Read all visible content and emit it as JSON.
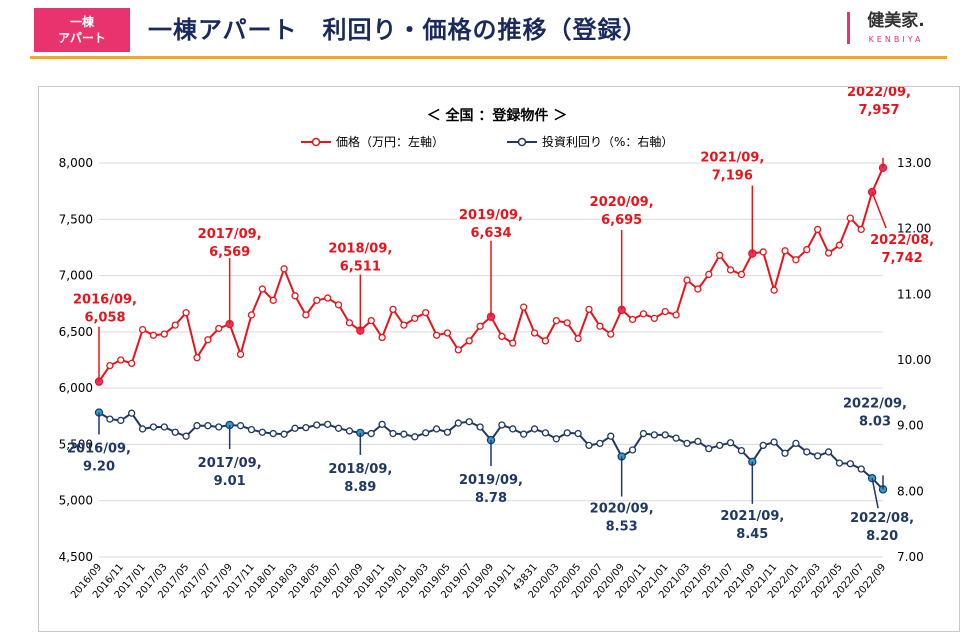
{
  "header": {
    "badge_line1": "一棟",
    "badge_line2": "アパート",
    "title": "一棟アパート　利回り・価格の推移（登録）",
    "logo_text": "健美家.",
    "logo_sub": "KENBIYA"
  },
  "colors": {
    "price": "#e8141b",
    "yield": "#1f3864",
    "price_highlight": "#e8336e",
    "yield_highlight": "#2e9fd1",
    "accent": "#f5a623"
  },
  "chart_data": {
    "type": "line",
    "title": "＜ 全国 ：登録物件 ＞",
    "x": [
      "2016/09",
      "2016/10",
      "2016/11",
      "2016/12",
      "2017/01",
      "2017/02",
      "2017/03",
      "2017/04",
      "2017/05",
      "2017/06",
      "2017/07",
      "2017/08",
      "2017/09",
      "2017/10",
      "2017/11",
      "2017/12",
      "2018/01",
      "2018/02",
      "2018/03",
      "2018/04",
      "2018/05",
      "2018/06",
      "2018/07",
      "2018/08",
      "2018/09",
      "2018/10",
      "2018/11",
      "2018/12",
      "2019/01",
      "2019/02",
      "2019/03",
      "2019/04",
      "2019/05",
      "2019/06",
      "2019/07",
      "2019/08",
      "2019/09",
      "2019/10",
      "2019/11",
      "2019/12",
      "2020/01",
      "2020/02",
      "2020/03",
      "2020/04",
      "2020/05",
      "2020/06",
      "2020/07",
      "2020/08",
      "2020/09",
      "2020/10",
      "2020/11",
      "2020/12",
      "2021/01",
      "2021/02",
      "2021/03",
      "2021/04",
      "2021/05",
      "2021/06",
      "2021/07",
      "2021/08",
      "2021/09",
      "2021/10",
      "2021/11",
      "2021/12",
      "2022/01",
      "2022/02",
      "2022/03",
      "2022/04",
      "2022/05",
      "2022/06",
      "2022/07",
      "2022/08",
      "2022/09"
    ],
    "x_tick_labels": [
      "2016/09",
      "2016/11",
      "2017/01",
      "2017/03",
      "2017/05",
      "2017/07",
      "2017/09",
      "2017/11",
      "2018/01",
      "2018/03",
      "2018/05",
      "2018/07",
      "2018/09",
      "2018/11",
      "2019/01",
      "2019/03",
      "2019/05",
      "2019/07",
      "2019/09",
      "2019/11",
      "43831",
      "2020/03",
      "2020/05",
      "2020/07",
      "2020/09",
      "2020/11",
      "2021/01",
      "2021/03",
      "2021/05",
      "2021/07",
      "2021/09",
      "2021/11",
      "2022/01",
      "2022/03",
      "2022/05",
      "2022/07",
      "2022/09"
    ],
    "series": [
      {
        "name": "価格（万円：左軸）",
        "axis": "left",
        "values": [
          6058,
          6200,
          6250,
          6220,
          6520,
          6470,
          6480,
          6560,
          6670,
          6270,
          6430,
          6530,
          6569,
          6300,
          6650,
          6880,
          6780,
          7060,
          6820,
          6650,
          6780,
          6800,
          6740,
          6580,
          6511,
          6600,
          6450,
          6700,
          6560,
          6620,
          6670,
          6470,
          6490,
          6340,
          6420,
          6550,
          6634,
          6460,
          6400,
          6720,
          6490,
          6420,
          6600,
          6580,
          6440,
          6700,
          6550,
          6480,
          6695,
          6610,
          6660,
          6620,
          6680,
          6650,
          6960,
          6880,
          7010,
          7180,
          7050,
          7010,
          7196,
          7210,
          6870,
          7220,
          7140,
          7230,
          7410,
          7200,
          7270,
          7510,
          7410,
          7742,
          7957
        ]
      },
      {
        "name": "投資利回り（%：右軸）",
        "axis": "right",
        "values": [
          9.2,
          9.1,
          9.08,
          9.19,
          8.95,
          8.98,
          8.98,
          8.9,
          8.84,
          9.0,
          9.0,
          8.98,
          9.01,
          9.0,
          8.94,
          8.9,
          8.88,
          8.87,
          8.96,
          8.97,
          9.01,
          9.02,
          8.96,
          8.92,
          8.89,
          8.88,
          9.02,
          8.88,
          8.87,
          8.83,
          8.89,
          8.95,
          8.9,
          9.04,
          9.06,
          8.98,
          8.78,
          9.01,
          8.95,
          8.87,
          8.95,
          8.89,
          8.8,
          8.89,
          8.88,
          8.7,
          8.73,
          8.84,
          8.53,
          8.63,
          8.88,
          8.86,
          8.86,
          8.81,
          8.73,
          8.76,
          8.65,
          8.7,
          8.74,
          8.62,
          8.45,
          8.7,
          8.75,
          8.58,
          8.73,
          8.6,
          8.54,
          8.6,
          8.43,
          8.42,
          8.34,
          8.2,
          8.03
        ]
      }
    ],
    "y_left": {
      "min": 4500,
      "max": 8000,
      "ticks": [
        "4,500",
        "5,000",
        "5,500",
        "6,000",
        "6,500",
        "7,000",
        "7,500",
        "8,000"
      ]
    },
    "y_right": {
      "min": 7.0,
      "max": 13.0,
      "ticks": [
        "7.00",
        "8.00",
        "9.00",
        "10.00",
        "11.00",
        "12.00",
        "13.00"
      ]
    },
    "legend_position": "top-center",
    "grid": true,
    "annotations": [
      {
        "series": 0,
        "index": 0,
        "line1": "2016/09,",
        "line2": "6,058"
      },
      {
        "series": 0,
        "index": 12,
        "line1": "2017/09,",
        "line2": "6,569"
      },
      {
        "series": 0,
        "index": 24,
        "line1": "2018/09,",
        "line2": "6,511"
      },
      {
        "series": 0,
        "index": 36,
        "line1": "2019/09,",
        "line2": "6,634"
      },
      {
        "series": 0,
        "index": 48,
        "line1": "2020/09,",
        "line2": "6,695"
      },
      {
        "series": 0,
        "index": 60,
        "line1": "2021/09,",
        "line2": "7,196"
      },
      {
        "series": 0,
        "index": 71,
        "line1": "2022/08,",
        "line2": "7,742"
      },
      {
        "series": 0,
        "index": 72,
        "line1": "2022/09,",
        "line2": "7,957"
      },
      {
        "series": 1,
        "index": 0,
        "line1": "2016/09,",
        "line2": "9.20"
      },
      {
        "series": 1,
        "index": 12,
        "line1": "2017/09,",
        "line2": "9.01"
      },
      {
        "series": 1,
        "index": 24,
        "line1": "2018/09,",
        "line2": "8.89"
      },
      {
        "series": 1,
        "index": 36,
        "line1": "2019/09,",
        "line2": "8.78"
      },
      {
        "series": 1,
        "index": 48,
        "line1": "2020/09,",
        "line2": "8.53"
      },
      {
        "series": 1,
        "index": 60,
        "line1": "2021/09,",
        "line2": "8.45"
      },
      {
        "series": 1,
        "index": 71,
        "line1": "2022/08,",
        "line2": "8.20"
      },
      {
        "series": 1,
        "index": 72,
        "line1": "2022/09,",
        "line2": "8.03"
      }
    ]
  }
}
